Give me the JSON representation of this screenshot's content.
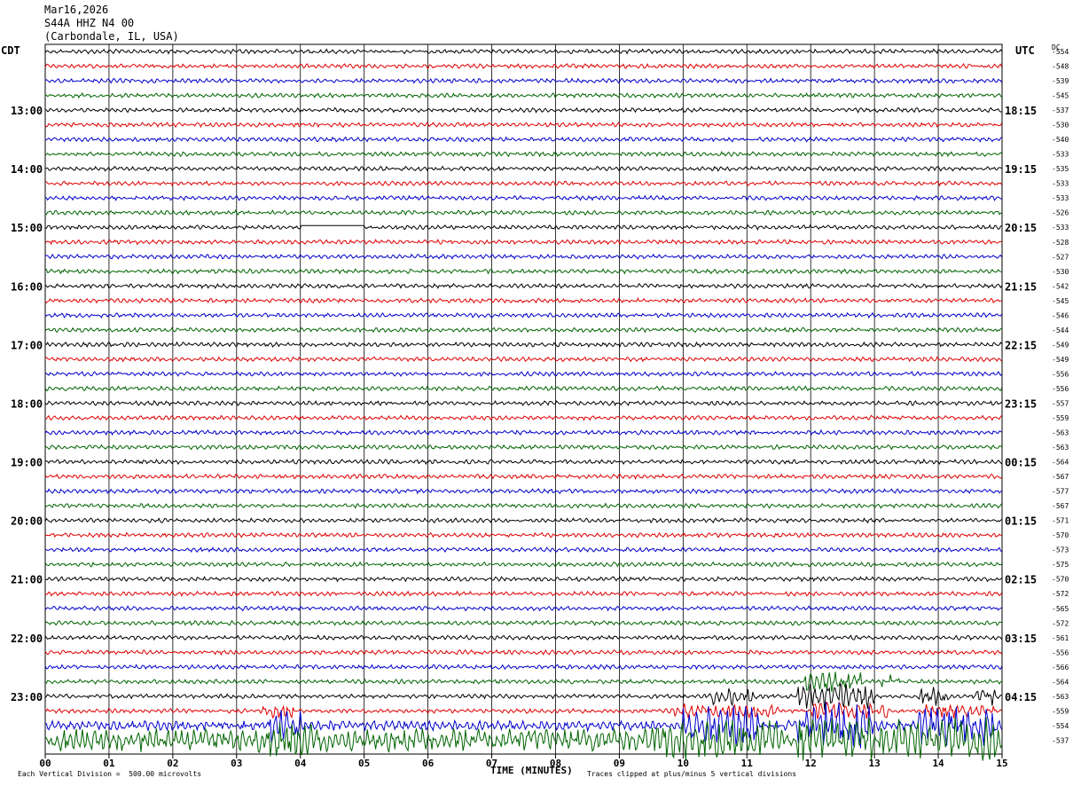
{
  "header": {
    "date": "Mar16,2026",
    "station": "S44A HHZ N4 00",
    "location": "(Carbondale, IL, USA)"
  },
  "axes": {
    "left_label": "CDT",
    "right_label": "UTC",
    "dc_label": "DC",
    "xlabel": "TIME (MINUTES)",
    "footer_left": "Each Vertical Division =  500.00 microvolts",
    "footer_right": "Traces clipped at plus/minus 5 vertical divisions"
  },
  "colors": {
    "trace_cycle": [
      "#000000",
      "#e00000",
      "#0000cc",
      "#006400"
    ],
    "grid": "#000000"
  },
  "chart_data": {
    "type": "line",
    "xlim": [
      0,
      15
    ],
    "x_ticks": [
      "00",
      "01",
      "02",
      "03",
      "04",
      "05",
      "06",
      "07",
      "08",
      "09",
      "10",
      "11",
      "12",
      "13",
      "14",
      "15"
    ],
    "left_hour_labels": [
      "13:00",
      "14:00",
      "15:00",
      "16:00",
      "17:00",
      "18:00",
      "19:00",
      "20:00",
      "21:00",
      "22:00",
      "23:00"
    ],
    "right_hour_labels": [
      "18:15",
      "19:15",
      "20:15",
      "21:15",
      "22:15",
      "23:15",
      "00:15",
      "01:15",
      "02:15",
      "03:15",
      "04:15"
    ],
    "dc_values": [
      "554",
      "548",
      "539",
      "545",
      "537",
      "530",
      "540",
      "533",
      "535",
      "533",
      "533",
      "526",
      "533",
      "528",
      "527",
      "530",
      "542",
      "545",
      "546",
      "544",
      "549",
      "549",
      "556",
      "556",
      "557",
      "559",
      "563",
      "563",
      "564",
      "567",
      "577",
      "567",
      "571",
      "570",
      "573",
      "575",
      "570",
      "572",
      "565",
      "572",
      "561",
      "556",
      "566",
      "564",
      "563",
      "559",
      "554",
      "537"
    ],
    "row_count": 48,
    "data_gap": {
      "row": 12,
      "x_start_min": 4.0,
      "x_end_min": 5.0
    }
  }
}
